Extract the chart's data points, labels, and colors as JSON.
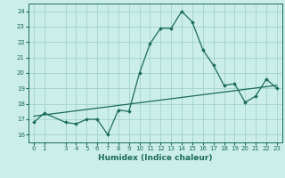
{
  "title": "",
  "xlabel": "Humidex (Indice chaleur)",
  "bg_color": "#cceee8",
  "grid_color": "#99cccc",
  "line_color": "#1a6b5a",
  "xlim": [
    -0.5,
    23.5
  ],
  "ylim": [
    15.5,
    24.5
  ],
  "xticks": [
    0,
    1,
    3,
    4,
    5,
    6,
    7,
    8,
    9,
    10,
    11,
    12,
    13,
    14,
    15,
    16,
    17,
    18,
    19,
    20,
    21,
    22,
    23
  ],
  "yticks": [
    16,
    17,
    18,
    19,
    20,
    21,
    22,
    23,
    24
  ],
  "main_x": [
    0,
    1,
    3,
    4,
    5,
    6,
    7,
    8,
    9,
    10,
    11,
    12,
    13,
    14,
    15,
    16,
    17,
    18,
    19,
    20,
    21,
    22,
    23
  ],
  "main_y": [
    16.8,
    17.4,
    16.8,
    16.7,
    17.0,
    17.0,
    16.0,
    17.6,
    17.5,
    20.0,
    21.9,
    22.9,
    22.9,
    24.0,
    23.3,
    21.5,
    20.5,
    19.2,
    19.3,
    18.1,
    18.5,
    19.6,
    19.0
  ],
  "trend_x": [
    0,
    23
  ],
  "trend_y": [
    17.2,
    19.2
  ]
}
